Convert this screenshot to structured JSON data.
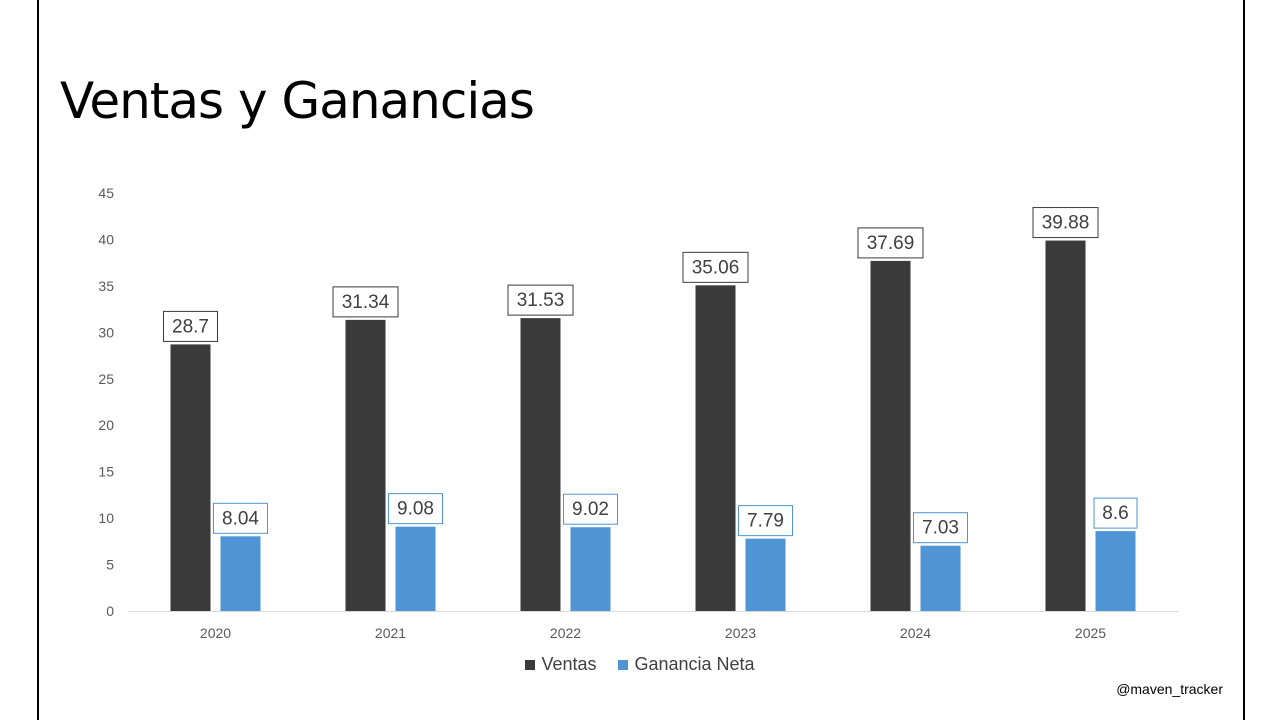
{
  "title": "Ventas y Ganancias",
  "watermark": "@maven_tracker",
  "colors": {
    "ventas": "#3a3a3a",
    "ganancia": "#4f94d4",
    "label_border_ventas": "#3a3a3a",
    "label_border_ganancia": "#4f94d4",
    "axis": "#d9d9d9",
    "tick_text": "#595959",
    "label_text": "#404040"
  },
  "chart_data": {
    "type": "bar",
    "title": "Ventas y Ganancias",
    "xlabel": "",
    "ylabel": "",
    "ylim": [
      0,
      45
    ],
    "yticks": [
      0,
      5,
      10,
      15,
      20,
      25,
      30,
      35,
      40,
      45
    ],
    "grid": false,
    "legend_position": "bottom",
    "categories": [
      "2020",
      "2021",
      "2022",
      "2023",
      "2024",
      "2025"
    ],
    "series": [
      {
        "name": "Ventas",
        "values": [
          28.7,
          31.34,
          31.53,
          35.06,
          37.69,
          39.88
        ]
      },
      {
        "name": "Ganancia Neta",
        "values": [
          8.04,
          9.08,
          9.02,
          7.79,
          7.03,
          8.6
        ]
      }
    ]
  }
}
